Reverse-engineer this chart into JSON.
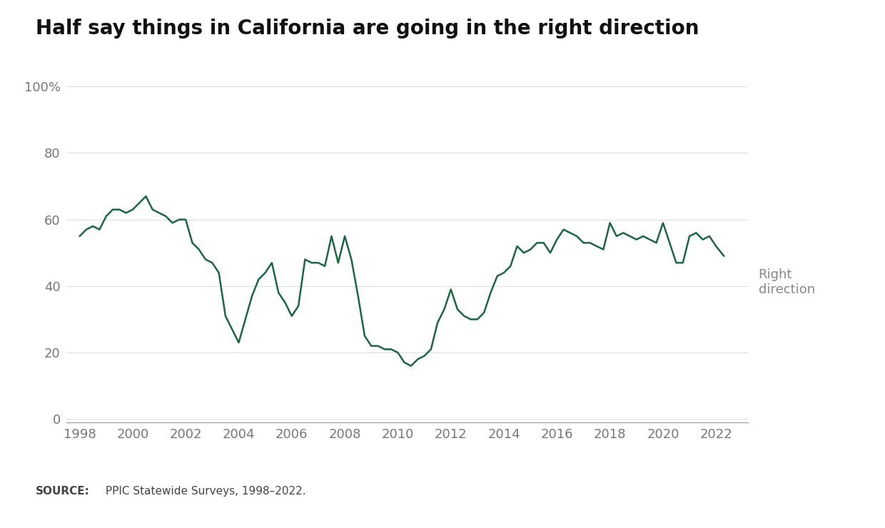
{
  "title": "Half say things in California are going in the right direction",
  "line_color": "#1a6645",
  "line_label": "Right\ndirection",
  "background_color": "#ffffff",
  "source_box_color": "#ebebeb",
  "source_label": "SOURCE:",
  "source_text": " PPIC Statewide Surveys, 1998–2022.",
  "yticks": [
    0,
    20,
    40,
    60,
    80,
    100
  ],
  "ytick_labels": [
    "0",
    "20",
    "40",
    "60",
    "80",
    "100%"
  ],
  "xticks": [
    1998,
    2000,
    2002,
    2004,
    2006,
    2008,
    2010,
    2012,
    2014,
    2016,
    2018,
    2020,
    2022
  ],
  "ylim": [
    -1,
    103
  ],
  "xlim": [
    1997.5,
    2023.2
  ],
  "data": {
    "years": [
      1998.0,
      1998.25,
      1998.5,
      1998.75,
      1999.0,
      1999.25,
      1999.5,
      1999.75,
      2000.0,
      2000.25,
      2000.5,
      2000.75,
      2001.0,
      2001.25,
      2001.5,
      2001.75,
      2002.0,
      2002.25,
      2002.5,
      2002.75,
      2003.0,
      2003.25,
      2003.5,
      2003.75,
      2004.0,
      2004.25,
      2004.5,
      2004.75,
      2005.0,
      2005.25,
      2005.5,
      2005.75,
      2006.0,
      2006.25,
      2006.5,
      2006.75,
      2007.0,
      2007.25,
      2007.5,
      2007.75,
      2008.0,
      2008.25,
      2008.5,
      2008.75,
      2009.0,
      2009.25,
      2009.5,
      2009.75,
      2010.0,
      2010.25,
      2010.5,
      2010.75,
      2011.0,
      2011.25,
      2011.5,
      2011.75,
      2012.0,
      2012.25,
      2012.5,
      2012.75,
      2013.0,
      2013.25,
      2013.5,
      2013.75,
      2014.0,
      2014.25,
      2014.5,
      2014.75,
      2015.0,
      2015.25,
      2015.5,
      2015.75,
      2016.0,
      2016.25,
      2016.5,
      2016.75,
      2017.0,
      2017.25,
      2017.5,
      2017.75,
      2018.0,
      2018.25,
      2018.5,
      2018.75,
      2019.0,
      2019.25,
      2019.5,
      2019.75,
      2020.0,
      2020.25,
      2020.5,
      2020.75,
      2021.0,
      2021.25,
      2021.5,
      2021.75,
      2022.0,
      2022.3
    ],
    "values": [
      55,
      57,
      58,
      57,
      61,
      63,
      63,
      62,
      63,
      65,
      67,
      63,
      62,
      61,
      59,
      60,
      60,
      53,
      51,
      48,
      47,
      44,
      31,
      27,
      23,
      30,
      37,
      42,
      44,
      47,
      38,
      35,
      31,
      34,
      48,
      47,
      47,
      46,
      55,
      47,
      55,
      48,
      37,
      25,
      22,
      22,
      21,
      21,
      20,
      17,
      16,
      18,
      19,
      21,
      29,
      33,
      39,
      33,
      31,
      30,
      30,
      32,
      38,
      43,
      44,
      46,
      52,
      50,
      51,
      53,
      53,
      50,
      54,
      57,
      56,
      55,
      53,
      53,
      52,
      51,
      59,
      55,
      56,
      55,
      54,
      55,
      54,
      53,
      59,
      53,
      47,
      47,
      55,
      56,
      54,
      55,
      52,
      49
    ]
  }
}
